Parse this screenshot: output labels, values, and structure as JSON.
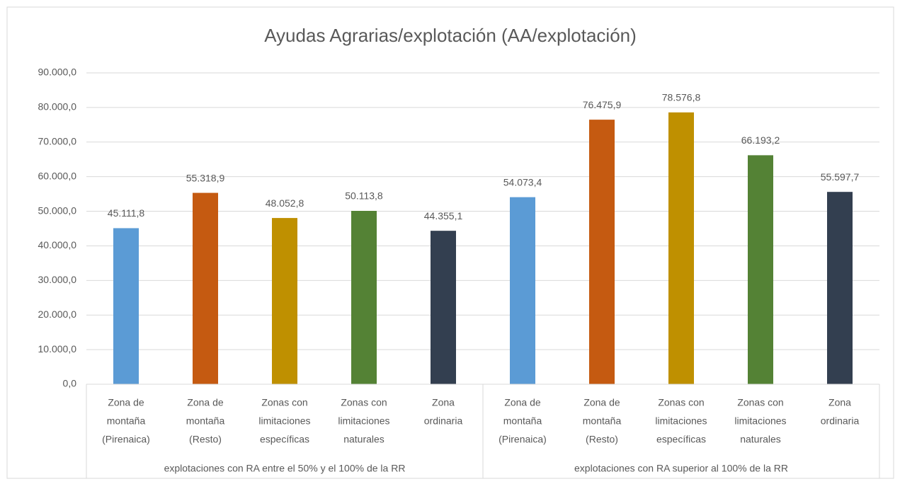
{
  "chart_data": {
    "type": "bar",
    "title": "Ayudas Agrarias/explotación (AA/explotación)",
    "colors": [
      "#5b9bd5",
      "#c55a11",
      "#bf9000",
      "#548235",
      "#333f50"
    ],
    "groups": [
      {
        "label": "explotaciones con RA entre el 50% y el 100% de la RR",
        "categories": [
          [
            "Zona de",
            "montaña",
            "(Pirenaica)"
          ],
          [
            "Zona de",
            "montaña",
            "(Resto)"
          ],
          [
            "Zonas con",
            "limitaciones",
            "específicas"
          ],
          [
            "Zonas con",
            "limitaciones",
            "naturales"
          ],
          [
            "Zona",
            "ordinaria"
          ]
        ],
        "values": [
          45111.8,
          55318.9,
          48052.8,
          50113.8,
          44355.1
        ],
        "value_labels": [
          "45.111,8",
          "55.318,9",
          "48.052,8",
          "50.113,8",
          "44.355,1"
        ]
      },
      {
        "label": "explotaciones con RA superior al 100% de la RR",
        "categories": [
          [
            "Zona de",
            "montaña",
            "(Pirenaica)"
          ],
          [
            "Zona de",
            "montaña",
            "(Resto)"
          ],
          [
            "Zonas con",
            "limitaciones",
            "específicas"
          ],
          [
            "Zonas con",
            "limitaciones",
            "naturales"
          ],
          [
            "Zona",
            "ordinaria"
          ]
        ],
        "values": [
          54073.4,
          76475.9,
          78576.8,
          66193.2,
          55597.7
        ],
        "value_labels": [
          "54.073,4",
          "76.475,9",
          "78.576,8",
          "66.193,2",
          "55.597,7"
        ]
      }
    ],
    "ylim": [
      0,
      90000
    ],
    "yticks": [
      {
        "value": 0,
        "label": "0,0"
      },
      {
        "value": 10000,
        "label": "10.000,0"
      },
      {
        "value": 20000,
        "label": "20.000,0"
      },
      {
        "value": 30000,
        "label": "30.000,0"
      },
      {
        "value": 40000,
        "label": "40.000,0"
      },
      {
        "value": 50000,
        "label": "50.000,0"
      },
      {
        "value": 60000,
        "label": "60.000,0"
      },
      {
        "value": 70000,
        "label": "70.000,0"
      },
      {
        "value": 80000,
        "label": "80.000,0"
      },
      {
        "value": 90000,
        "label": "90.000,0"
      }
    ],
    "grid": true
  }
}
